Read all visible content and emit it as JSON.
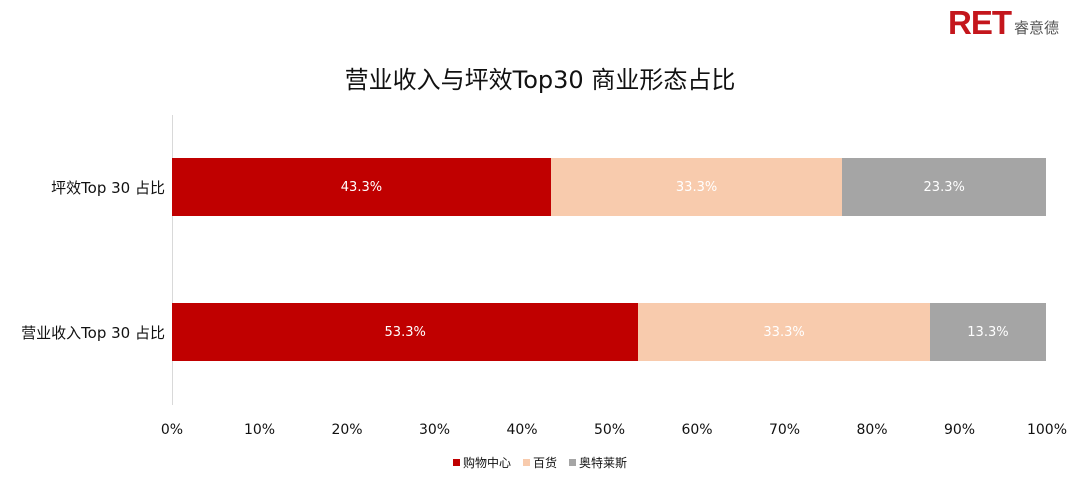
{
  "logo": {
    "brand": "RET",
    "cn": "睿意德"
  },
  "chart_data": {
    "type": "bar",
    "orientation": "horizontal",
    "stacked": true,
    "title": "营业收入与坪效Top30 商业形态占比",
    "categories": [
      "坪效Top 30 占比",
      "营业收入Top 30 占比"
    ],
    "series": [
      {
        "name": "购物中心",
        "color": "#C00000",
        "values": [
          43.3,
          53.3
        ],
        "labels": [
          "43.3%",
          "53.3%"
        ]
      },
      {
        "name": "百货",
        "color": "#F8CBAD",
        "values": [
          33.3,
          33.3
        ],
        "labels": [
          "33.3%",
          "33.3%"
        ]
      },
      {
        "name": "奥特莱斯",
        "color": "#A5A5A5",
        "values": [
          23.3,
          13.3
        ],
        "labels": [
          "23.3%",
          "13.3%"
        ]
      }
    ],
    "xlim": [
      0,
      100
    ],
    "xticks": [
      "0%",
      "10%",
      "20%",
      "30%",
      "40%",
      "50%",
      "60%",
      "70%",
      "80%",
      "90%",
      "100%"
    ],
    "legend": "bottom",
    "grid": false
  }
}
